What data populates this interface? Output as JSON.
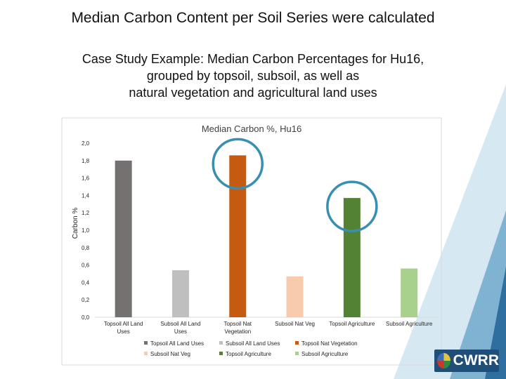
{
  "slide": {
    "title": "Median Carbon Content per Soil Series were calculated",
    "subtitle_lines": [
      "Case Study Example: Median Carbon Percentages for Hu16,",
      "grouped by topsoil, subsoil, as well as",
      "natural vegetation and agricultural land uses"
    ],
    "logo_text": "CWRR"
  },
  "chart_data": {
    "type": "bar",
    "title": "Median Carbon %, Hu16",
    "xlabel": "",
    "ylabel": "Carbon %",
    "ylim": [
      0,
      2.0
    ],
    "yticks": [
      "0,0",
      "0,2",
      "0,4",
      "0,6",
      "0,8",
      "1,0",
      "1,2",
      "1,4",
      "1,6",
      "1,8",
      "2,0"
    ],
    "categories": [
      [
        "Topsoil All Land",
        "Uses"
      ],
      [
        "Subsoil All Land",
        "Uses"
      ],
      [
        "Topsoil Nat",
        "Vegetation"
      ],
      [
        "Subsoil Nat Veg"
      ],
      [
        "Topsoil Agriculture"
      ],
      [
        "Subsoil Agriculture"
      ]
    ],
    "values": [
      1.8,
      0.54,
      1.86,
      0.47,
      1.37,
      0.56
    ],
    "colors": [
      "#767171",
      "#bfbfbf",
      "#c55a11",
      "#f8cbad",
      "#548235",
      "#a9d18e"
    ],
    "legend": [
      "Topsoil All Land Uses",
      "Subsoil All Land Uses",
      "Topsoil Nat Vegetation",
      "Subsoil Nat Veg",
      "Topsoil Agriculture",
      "Subsoil Agriculture"
    ],
    "legend_position": "bottom",
    "grid": false,
    "highlight_circles": [
      2,
      4
    ],
    "highlight_color": "#3a8fb0"
  }
}
